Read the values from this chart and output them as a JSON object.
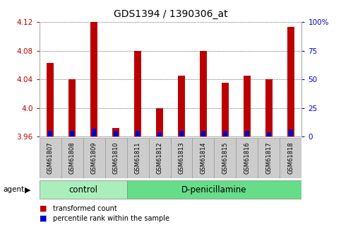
{
  "title": "GDS1394 / 1390306_at",
  "categories": [
    "GSM61807",
    "GSM61808",
    "GSM61809",
    "GSM61810",
    "GSM61811",
    "GSM61812",
    "GSM61813",
    "GSM61814",
    "GSM61815",
    "GSM61816",
    "GSM61817",
    "GSM61818"
  ],
  "transformed_count": [
    4.063,
    4.04,
    4.12,
    3.972,
    4.08,
    4.0,
    4.045,
    4.08,
    4.035,
    4.045,
    4.04,
    4.113
  ],
  "percentile_rank_pct": [
    5,
    5,
    7,
    5,
    5,
    4,
    5,
    5,
    5,
    5,
    4,
    6
  ],
  "ylim_left": [
    3.96,
    4.12
  ],
  "ylim_right": [
    0,
    100
  ],
  "bar_width": 0.35,
  "red_color": "#bb0000",
  "blue_color": "#0000cc",
  "groups": [
    {
      "label": "control",
      "start": 0,
      "end": 3,
      "color": "#aaeebb"
    },
    {
      "label": "D-penicillamine",
      "start": 4,
      "end": 11,
      "color": "#66dd88"
    }
  ],
  "yticks_left": [
    3.96,
    4.0,
    4.04,
    4.08,
    4.12
  ],
  "yticks_right": [
    0,
    25,
    50,
    75,
    100
  ],
  "right_ytick_labels": [
    "0",
    "25",
    "50",
    "75",
    "100%"
  ],
  "legend_items": [
    {
      "label": "transformed count",
      "color": "#bb0000"
    },
    {
      "label": "percentile rank within the sample",
      "color": "#0000cc"
    }
  ],
  "title_fontsize": 10,
  "tick_fontsize": 7.5,
  "xtick_fontsize": 6,
  "group_fontsize": 8.5
}
